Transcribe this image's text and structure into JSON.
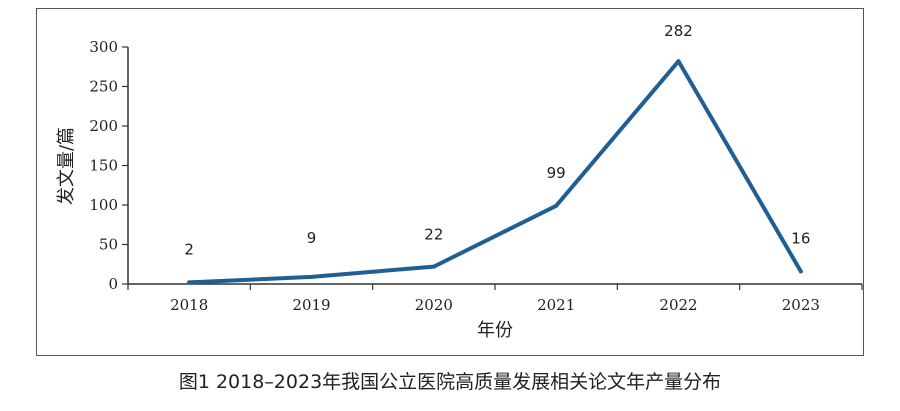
{
  "caption": "图1 2018–2023年我国公立医院高质量发展相关论文年产量分布",
  "chart_data": {
    "type": "line",
    "categories": [
      "2018",
      "2019",
      "2020",
      "2021",
      "2022",
      "2023"
    ],
    "values": [
      2,
      9,
      22,
      99,
      282,
      16
    ],
    "data_labels": [
      "2",
      "9",
      "22",
      "99",
      "282",
      "16"
    ],
    "xlabel": "年份",
    "ylabel": "发文量/篇",
    "ylim": [
      0,
      300
    ],
    "yticks": [
      "0",
      "50",
      "100",
      "150",
      "200",
      "250",
      "300"
    ],
    "grid": false,
    "line_color": "#1f5f94"
  }
}
